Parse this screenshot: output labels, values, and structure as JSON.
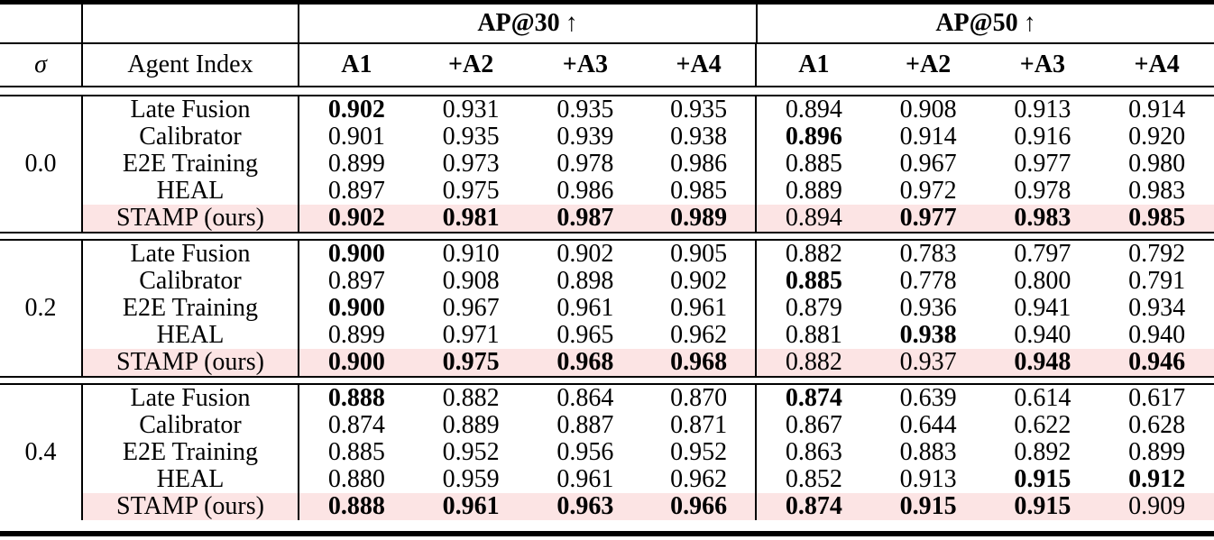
{
  "table": {
    "sigma_header": "σ",
    "agent_index_header": "Agent Index",
    "highlight_color": "#fce4e4",
    "groups": [
      {
        "label": "AP@30",
        "arrow": "↑"
      },
      {
        "label": "AP@50",
        "arrow": "↑"
      }
    ],
    "columns": [
      "A1",
      "+A2",
      "+A3",
      "+A4"
    ],
    "blocks": [
      {
        "sigma": "0.0",
        "rows": [
          {
            "method": "Late Fusion",
            "highlight": false,
            "ap30": [
              {
                "v": "0.902",
                "b": true
              },
              {
                "v": "0.931",
                "b": false
              },
              {
                "v": "0.935",
                "b": false
              },
              {
                "v": "0.935",
                "b": false
              }
            ],
            "ap50": [
              {
                "v": "0.894",
                "b": false
              },
              {
                "v": "0.908",
                "b": false
              },
              {
                "v": "0.913",
                "b": false
              },
              {
                "v": "0.914",
                "b": false
              }
            ]
          },
          {
            "method": "Calibrator",
            "highlight": false,
            "ap30": [
              {
                "v": "0.901",
                "b": false
              },
              {
                "v": "0.935",
                "b": false
              },
              {
                "v": "0.939",
                "b": false
              },
              {
                "v": "0.938",
                "b": false
              }
            ],
            "ap50": [
              {
                "v": "0.896",
                "b": true
              },
              {
                "v": "0.914",
                "b": false
              },
              {
                "v": "0.916",
                "b": false
              },
              {
                "v": "0.920",
                "b": false
              }
            ]
          },
          {
            "method": "E2E Training",
            "highlight": false,
            "ap30": [
              {
                "v": "0.899",
                "b": false
              },
              {
                "v": "0.973",
                "b": false
              },
              {
                "v": "0.978",
                "b": false
              },
              {
                "v": "0.986",
                "b": false
              }
            ],
            "ap50": [
              {
                "v": "0.885",
                "b": false
              },
              {
                "v": "0.967",
                "b": false
              },
              {
                "v": "0.977",
                "b": false
              },
              {
                "v": "0.980",
                "b": false
              }
            ]
          },
          {
            "method": "HEAL",
            "highlight": false,
            "ap30": [
              {
                "v": "0.897",
                "b": false
              },
              {
                "v": "0.975",
                "b": false
              },
              {
                "v": "0.986",
                "b": false
              },
              {
                "v": "0.985",
                "b": false
              }
            ],
            "ap50": [
              {
                "v": "0.889",
                "b": false
              },
              {
                "v": "0.972",
                "b": false
              },
              {
                "v": "0.978",
                "b": false
              },
              {
                "v": "0.983",
                "b": false
              }
            ]
          },
          {
            "method": "STAMP (ours)",
            "highlight": true,
            "ap30": [
              {
                "v": "0.902",
                "b": true
              },
              {
                "v": "0.981",
                "b": true
              },
              {
                "v": "0.987",
                "b": true
              },
              {
                "v": "0.989",
                "b": true
              }
            ],
            "ap50": [
              {
                "v": "0.894",
                "b": false
              },
              {
                "v": "0.977",
                "b": true
              },
              {
                "v": "0.983",
                "b": true
              },
              {
                "v": "0.985",
                "b": true
              }
            ]
          }
        ]
      },
      {
        "sigma": "0.2",
        "rows": [
          {
            "method": "Late Fusion",
            "highlight": false,
            "ap30": [
              {
                "v": "0.900",
                "b": true
              },
              {
                "v": "0.910",
                "b": false
              },
              {
                "v": "0.902",
                "b": false
              },
              {
                "v": "0.905",
                "b": false
              }
            ],
            "ap50": [
              {
                "v": "0.882",
                "b": false
              },
              {
                "v": "0.783",
                "b": false
              },
              {
                "v": "0.797",
                "b": false
              },
              {
                "v": "0.792",
                "b": false
              }
            ]
          },
          {
            "method": "Calibrator",
            "highlight": false,
            "ap30": [
              {
                "v": "0.897",
                "b": false
              },
              {
                "v": "0.908",
                "b": false
              },
              {
                "v": "0.898",
                "b": false
              },
              {
                "v": "0.902",
                "b": false
              }
            ],
            "ap50": [
              {
                "v": "0.885",
                "b": true
              },
              {
                "v": "0.778",
                "b": false
              },
              {
                "v": "0.800",
                "b": false
              },
              {
                "v": "0.791",
                "b": false
              }
            ]
          },
          {
            "method": "E2E Training",
            "highlight": false,
            "ap30": [
              {
                "v": "0.900",
                "b": true
              },
              {
                "v": "0.967",
                "b": false
              },
              {
                "v": "0.961",
                "b": false
              },
              {
                "v": "0.961",
                "b": false
              }
            ],
            "ap50": [
              {
                "v": "0.879",
                "b": false
              },
              {
                "v": "0.936",
                "b": false
              },
              {
                "v": "0.941",
                "b": false
              },
              {
                "v": "0.934",
                "b": false
              }
            ]
          },
          {
            "method": "HEAL",
            "highlight": false,
            "ap30": [
              {
                "v": "0.899",
                "b": false
              },
              {
                "v": "0.971",
                "b": false
              },
              {
                "v": "0.965",
                "b": false
              },
              {
                "v": "0.962",
                "b": false
              }
            ],
            "ap50": [
              {
                "v": "0.881",
                "b": false
              },
              {
                "v": "0.938",
                "b": true
              },
              {
                "v": "0.940",
                "b": false
              },
              {
                "v": "0.940",
                "b": false
              }
            ]
          },
          {
            "method": "STAMP (ours)",
            "highlight": true,
            "ap30": [
              {
                "v": "0.900",
                "b": true
              },
              {
                "v": "0.975",
                "b": true
              },
              {
                "v": "0.968",
                "b": true
              },
              {
                "v": "0.968",
                "b": true
              }
            ],
            "ap50": [
              {
                "v": "0.882",
                "b": false
              },
              {
                "v": "0.937",
                "b": false
              },
              {
                "v": "0.948",
                "b": true
              },
              {
                "v": "0.946",
                "b": true
              }
            ]
          }
        ]
      },
      {
        "sigma": "0.4",
        "rows": [
          {
            "method": "Late Fusion",
            "highlight": false,
            "ap30": [
              {
                "v": "0.888",
                "b": true
              },
              {
                "v": "0.882",
                "b": false
              },
              {
                "v": "0.864",
                "b": false
              },
              {
                "v": "0.870",
                "b": false
              }
            ],
            "ap50": [
              {
                "v": "0.874",
                "b": true
              },
              {
                "v": "0.639",
                "b": false
              },
              {
                "v": "0.614",
                "b": false
              },
              {
                "v": "0.617",
                "b": false
              }
            ]
          },
          {
            "method": "Calibrator",
            "highlight": false,
            "ap30": [
              {
                "v": "0.874",
                "b": false
              },
              {
                "v": "0.889",
                "b": false
              },
              {
                "v": "0.887",
                "b": false
              },
              {
                "v": "0.871",
                "b": false
              }
            ],
            "ap50": [
              {
                "v": "0.867",
                "b": false
              },
              {
                "v": "0.644",
                "b": false
              },
              {
                "v": "0.622",
                "b": false
              },
              {
                "v": "0.628",
                "b": false
              }
            ]
          },
          {
            "method": "E2E Training",
            "highlight": false,
            "ap30": [
              {
                "v": "0.885",
                "b": false
              },
              {
                "v": "0.952",
                "b": false
              },
              {
                "v": "0.956",
                "b": false
              },
              {
                "v": "0.952",
                "b": false
              }
            ],
            "ap50": [
              {
                "v": "0.863",
                "b": false
              },
              {
                "v": "0.883",
                "b": false
              },
              {
                "v": "0.892",
                "b": false
              },
              {
                "v": "0.899",
                "b": false
              }
            ]
          },
          {
            "method": "HEAL",
            "highlight": false,
            "ap30": [
              {
                "v": "0.880",
                "b": false
              },
              {
                "v": "0.959",
                "b": false
              },
              {
                "v": "0.961",
                "b": false
              },
              {
                "v": "0.962",
                "b": false
              }
            ],
            "ap50": [
              {
                "v": "0.852",
                "b": false
              },
              {
                "v": "0.913",
                "b": false
              },
              {
                "v": "0.915",
                "b": true
              },
              {
                "v": "0.912",
                "b": true
              }
            ]
          },
          {
            "method": "STAMP (ours)",
            "highlight": true,
            "ap30": [
              {
                "v": "0.888",
                "b": true
              },
              {
                "v": "0.961",
                "b": true
              },
              {
                "v": "0.963",
                "b": true
              },
              {
                "v": "0.966",
                "b": true
              }
            ],
            "ap50": [
              {
                "v": "0.874",
                "b": true
              },
              {
                "v": "0.915",
                "b": true
              },
              {
                "v": "0.915",
                "b": true
              },
              {
                "v": "0.909",
                "b": false
              }
            ]
          }
        ]
      }
    ]
  }
}
